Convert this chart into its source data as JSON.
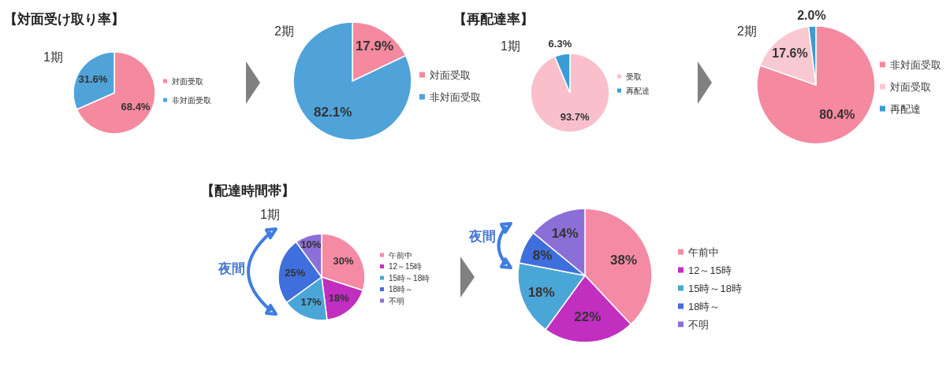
{
  "chart_data": [
    {
      "type": "pie",
      "title": "【対面受け取り率】",
      "subtitle": "1期",
      "categories": [
        "対面受取",
        "非対面受取"
      ],
      "values": [
        68.4,
        31.6
      ],
      "colors": [
        "#f4899f",
        "#4fa3d9"
      ],
      "value_labels": [
        "68.4%",
        "31.6%"
      ],
      "legend": "right"
    },
    {
      "type": "pie",
      "subtitle": "2期",
      "categories": [
        "対面受取",
        "非対面受取"
      ],
      "values": [
        17.9,
        82.1
      ],
      "colors": [
        "#f4899f",
        "#4fa3d9"
      ],
      "value_labels": [
        "17.9%",
        "82.1%"
      ],
      "legend": "right"
    },
    {
      "type": "pie",
      "title": "【再配達率】",
      "subtitle": "1期",
      "categories": [
        "受取",
        "再配達"
      ],
      "values": [
        93.7,
        6.3
      ],
      "colors": [
        "#f9c0cc",
        "#3a9bd5"
      ],
      "value_labels": [
        "93.7%",
        "6.3%"
      ],
      "legend": "right"
    },
    {
      "type": "pie",
      "subtitle": "2期",
      "categories": [
        "非対面受取",
        "対面受取",
        "再配達"
      ],
      "values": [
        80.4,
        17.6,
        2.0
      ],
      "colors": [
        "#f4899f",
        "#f9c9d2",
        "#3a9bd5"
      ],
      "value_labels": [
        "80.4%",
        "17.6%",
        "2.0%"
      ],
      "legend": "right"
    },
    {
      "type": "pie",
      "title": "【配達時間帯】",
      "subtitle": "1期",
      "categories": [
        "午前中",
        "12～15時",
        "15時～18時",
        "18時～",
        "不明"
      ],
      "values": [
        30,
        18,
        17,
        25,
        10
      ],
      "colors": [
        "#f58aa4",
        "#c22ec0",
        "#4ba6d8",
        "#3f6fdc",
        "#8c6fd6"
      ],
      "value_labels": [
        "30%",
        "18%",
        "17%",
        "25%",
        "10%"
      ],
      "legend": "right",
      "annotations": [
        "夜間"
      ]
    },
    {
      "type": "pie",
      "categories": [
        "午前中",
        "12～15時",
        "15時～18時",
        "18時～",
        "不明"
      ],
      "values": [
        38,
        22,
        18,
        8,
        14
      ],
      "colors": [
        "#f58aa4",
        "#c22ec0",
        "#4ba6d8",
        "#3f6fdc",
        "#8c6fd6"
      ],
      "value_labels": [
        "38%",
        "22%",
        "18%",
        "8%",
        "14%"
      ],
      "legend": "right",
      "annotations": [
        "夜間"
      ]
    }
  ]
}
